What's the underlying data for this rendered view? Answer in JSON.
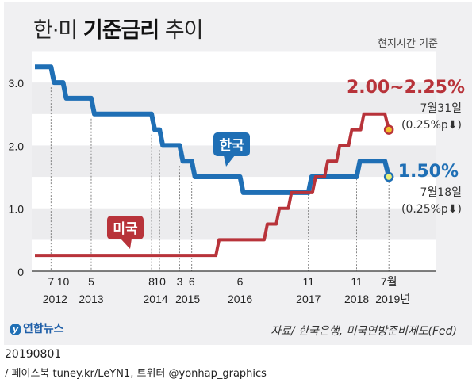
{
  "header": {
    "title_pre": "한·미 ",
    "title_bold": "기준금리",
    "title_post": " 추이",
    "subtitle": "현지시간 기준"
  },
  "chart_data": {
    "type": "line",
    "step": true,
    "ylim": [
      0,
      3.5
    ],
    "yticks": [
      {
        "v": 0,
        "label": "0"
      },
      {
        "v": 1,
        "label": "1.0"
      },
      {
        "v": 2,
        "label": "2.0"
      },
      {
        "v": 3,
        "label": "3.0"
      }
    ],
    "xlim": [
      "2012-03",
      "2019-07"
    ],
    "month_ticks": [
      {
        "date": "2012-07",
        "label": "7"
      },
      {
        "date": "2012-10",
        "label": "10"
      },
      {
        "date": "2013-05",
        "label": "5"
      },
      {
        "date": "2014-08",
        "label": "8"
      },
      {
        "date": "2014-10",
        "label": "10"
      },
      {
        "date": "2015-03",
        "label": "3"
      },
      {
        "date": "2015-06",
        "label": "6"
      },
      {
        "date": "2016-06",
        "label": "6"
      },
      {
        "date": "2017-11",
        "label": "11"
      },
      {
        "date": "2018-11",
        "label": "11"
      },
      {
        "date": "2019-07",
        "label": "7월"
      }
    ],
    "year_labels": [
      {
        "date": "2012-08",
        "label": "2012"
      },
      {
        "date": "2013-05",
        "label": "2013"
      },
      {
        "date": "2014-09",
        "label": "2014"
      },
      {
        "date": "2015-05",
        "label": "2015"
      },
      {
        "date": "2016-06",
        "label": "2016"
      },
      {
        "date": "2017-11",
        "label": "2017"
      },
      {
        "date": "2018-11",
        "label": "2018"
      },
      {
        "date": "2019-08",
        "label": "2019년"
      }
    ],
    "series": [
      {
        "name": "한국",
        "color": "#1f6fb5",
        "points": [
          [
            "2012-03",
            3.25
          ],
          [
            "2012-07",
            3.0
          ],
          [
            "2012-10",
            2.75
          ],
          [
            "2013-05",
            2.5
          ],
          [
            "2014-08",
            2.25
          ],
          [
            "2014-10",
            2.0
          ],
          [
            "2015-03",
            1.75
          ],
          [
            "2015-06",
            1.5
          ],
          [
            "2016-06",
            1.25
          ],
          [
            "2017-11",
            1.5
          ],
          [
            "2018-11",
            1.75
          ],
          [
            "2019-07",
            1.5
          ]
        ]
      },
      {
        "name": "미국",
        "color": "#b8333a",
        "points": [
          [
            "2012-03",
            0.25
          ],
          [
            "2015-12",
            0.5
          ],
          [
            "2016-12",
            0.75
          ],
          [
            "2017-03",
            1.0
          ],
          [
            "2017-06",
            1.25
          ],
          [
            "2017-12",
            1.5
          ],
          [
            "2018-03",
            1.75
          ],
          [
            "2018-06",
            2.0
          ],
          [
            "2018-09",
            2.25
          ],
          [
            "2018-12",
            2.5
          ],
          [
            "2019-07",
            2.25
          ]
        ]
      }
    ],
    "annotations": {
      "us": {
        "value": "2.00~2.25%",
        "date": "7월31일",
        "change": "(0.25%p⬇)"
      },
      "kr": {
        "value": "1.50%",
        "date": "7월18일",
        "change": "(0.25%p⬇)"
      }
    }
  },
  "footer": {
    "logo": "연합뉴스",
    "source": "자료/ 한국은행, 미국연방준비제도(Fed)",
    "date": "20190801",
    "social": "/ 페이스북 tuney.kr/LeYN1, 트위터 @yonhap_graphics"
  }
}
